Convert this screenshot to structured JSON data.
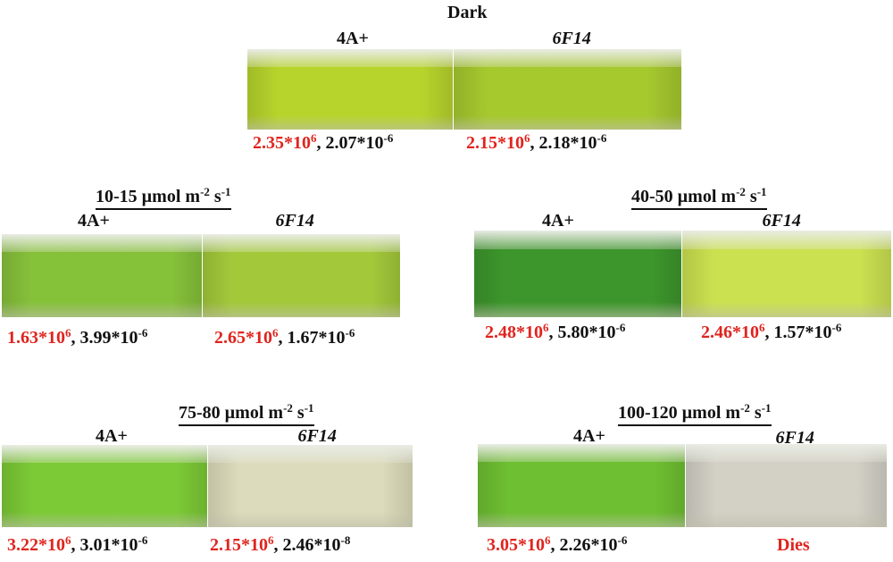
{
  "panels": [
    {
      "title": [
        "Dark"
      ],
      "labels": [
        "4A+",
        "6F14"
      ],
      "flasks": [
        {
          "annotation": [
            "2.35*10",
            "6",
            ", 2.07*10",
            "-6"
          ]
        },
        {
          "annotation": [
            "2.15*10",
            "6",
            ", 2.18*10",
            "-6"
          ]
        }
      ]
    },
    {
      "title": [
        "10-15 µmol m",
        "-2",
        " s",
        "-1"
      ],
      "labels": [
        "4A+",
        "6F14"
      ],
      "flasks": [
        {
          "annotation": [
            "1.63*10",
            "6",
            ", 3.99*10",
            "-6"
          ]
        },
        {
          "annotation": [
            "2.65*10",
            "6",
            ", 1.67*10",
            "-6"
          ]
        }
      ]
    },
    {
      "title": [
        "40-50 µmol m",
        "-2",
        " s",
        "-1"
      ],
      "labels": [
        "4A+",
        "6F14"
      ],
      "flasks": [
        {
          "annotation": [
            "2.48*10",
            "6",
            ", 5.80*10",
            "-6"
          ]
        },
        {
          "annotation": [
            "2.46*10",
            "6",
            ", 1.57*10",
            "-6"
          ]
        }
      ]
    },
    {
      "title": [
        "75-80 µmol m",
        "-2",
        " s",
        "-1"
      ],
      "labels": [
        "4A+",
        "6F14"
      ],
      "flasks": [
        {
          "annotation": [
            "3.22*10",
            "6",
            ", 3.01*10",
            "-6"
          ]
        },
        {
          "annotation": [
            "2.15*10",
            "6",
            ", 2.46*10",
            "-8"
          ]
        }
      ]
    },
    {
      "title": [
        "100-120 µmol m",
        "-2",
        " s",
        "-1"
      ],
      "labels": [
        "4A+",
        "6F14"
      ],
      "flasks": [
        {
          "annotation": [
            "3.05*10",
            "6",
            ", 2.26*10",
            "-6"
          ]
        },
        {
          "annotation": [
            "Dies"
          ]
        }
      ]
    }
  ]
}
